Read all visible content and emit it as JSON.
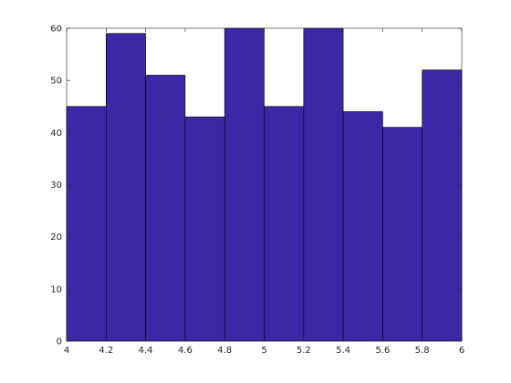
{
  "chart_data": {
    "type": "histogram",
    "bins": [
      4,
      4.2,
      4.4,
      4.6,
      4.8,
      5,
      5.2,
      5.4,
      5.6,
      5.8,
      6
    ],
    "values": [
      45,
      59,
      51,
      43,
      60,
      45,
      60,
      44,
      41,
      52
    ],
    "color": "#3c28a6",
    "xlim": [
      4,
      6
    ],
    "ylim": [
      0,
      60
    ],
    "xticks": [
      4,
      4.2,
      4.4,
      4.6,
      4.8,
      5,
      5.2,
      5.4,
      5.6,
      5.8,
      6
    ],
    "yticks": [
      0,
      10,
      20,
      30,
      40,
      50,
      60
    ],
    "grid": false
  }
}
